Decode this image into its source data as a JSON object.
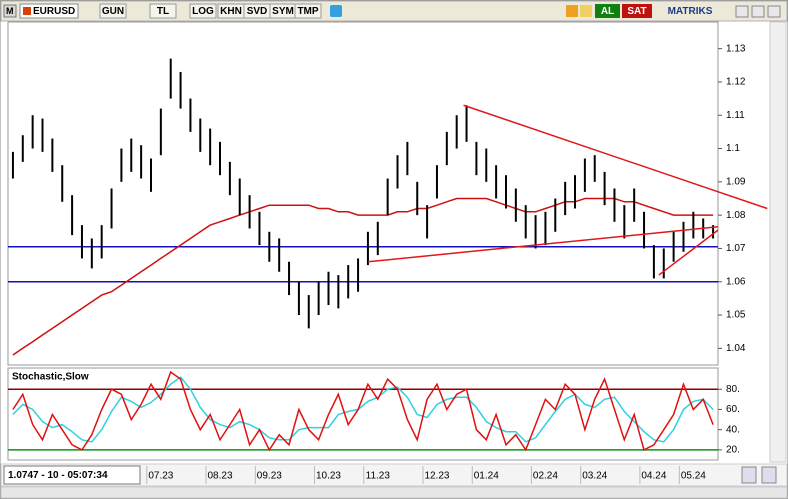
{
  "toolbar": {
    "symbol": "EURUSD",
    "buttons": [
      "GUN",
      "TL",
      "LOG",
      "KHN",
      "SVD",
      "SYM",
      "TMP"
    ],
    "buy": "AL",
    "sell": "SAT",
    "brand": "MATRIKS"
  },
  "status": "1.0747 - 10 - 05:07:34",
  "chart_data": [
    {
      "type": "ohlc",
      "color": "#000000",
      "categories": [
        null,
        null,
        null,
        null,
        null,
        null,
        null,
        null,
        null,
        null,
        null,
        null,
        null,
        null,
        null,
        "07.23",
        null,
        null,
        null,
        null,
        null,
        "08.23",
        null,
        null,
        null,
        null,
        "09.23",
        null,
        null,
        null,
        null,
        null,
        "10.23",
        null,
        null,
        null,
        null,
        "11.23",
        null,
        null,
        null,
        null,
        null,
        "12.23",
        null,
        null,
        null,
        null,
        "01.24",
        null,
        null,
        null,
        null,
        null,
        "02.24",
        null,
        null,
        null,
        null,
        "03.24",
        null,
        null,
        null,
        null,
        null,
        "04.24",
        null,
        null,
        null,
        "05.24",
        null,
        null
      ],
      "high": [
        1.099,
        1.104,
        1.11,
        1.109,
        1.103,
        1.095,
        1.086,
        1.077,
        1.073,
        1.077,
        1.088,
        1.1,
        1.103,
        1.101,
        1.097,
        1.112,
        1.127,
        1.123,
        1.115,
        1.109,
        1.106,
        1.102,
        1.096,
        1.091,
        1.086,
        1.081,
        1.075,
        1.073,
        1.066,
        1.06,
        1.056,
        1.06,
        1.063,
        1.062,
        1.065,
        1.067,
        1.075,
        1.078,
        1.091,
        1.098,
        1.102,
        1.09,
        1.083,
        1.095,
        1.105,
        1.11,
        1.113,
        1.102,
        1.1,
        1.095,
        1.092,
        1.088,
        1.083,
        1.08,
        1.081,
        1.085,
        1.09,
        1.092,
        1.097,
        1.098,
        1.093,
        1.088,
        1.083,
        1.088,
        1.081,
        1.071,
        1.07,
        1.075,
        1.078,
        1.081,
        1.079,
        1.077
      ],
      "low": [
        1.091,
        1.096,
        1.1,
        1.099,
        1.093,
        1.084,
        1.074,
        1.067,
        1.064,
        1.067,
        1.076,
        1.09,
        1.093,
        1.091,
        1.087,
        1.098,
        1.115,
        1.112,
        1.105,
        1.099,
        1.095,
        1.092,
        1.086,
        1.08,
        1.076,
        1.071,
        1.066,
        1.063,
        1.056,
        1.05,
        1.046,
        1.05,
        1.053,
        1.052,
        1.055,
        1.057,
        1.065,
        1.068,
        1.08,
        1.088,
        1.092,
        1.08,
        1.073,
        1.085,
        1.095,
        1.1,
        1.102,
        1.092,
        1.09,
        1.085,
        1.082,
        1.078,
        1.073,
        1.07,
        1.071,
        1.075,
        1.08,
        1.082,
        1.087,
        1.09,
        1.083,
        1.078,
        1.073,
        1.078,
        1.07,
        1.061,
        1.061,
        1.066,
        1.069,
        1.073,
        1.073,
        1.073
      ],
      "series": [
        {
          "color": "#d01010",
          "values": [
            1.038,
            1.04,
            1.042,
            1.044,
            1.046,
            1.048,
            1.05,
            1.052,
            1.054,
            1.056,
            1.057,
            1.059,
            1.061,
            1.063,
            1.065,
            1.067,
            1.069,
            1.071,
            1.073,
            1.075,
            1.077,
            1.078,
            1.079,
            1.08,
            1.081,
            1.082,
            1.083,
            1.083,
            1.083,
            1.083,
            1.083,
            1.082,
            1.082,
            1.081,
            1.081,
            1.08,
            1.08,
            1.08,
            1.08,
            1.081,
            1.081,
            1.082,
            1.082,
            1.083,
            1.084,
            1.085,
            1.085,
            1.085,
            1.085,
            1.084,
            1.083,
            1.082,
            1.081,
            1.081,
            1.082,
            1.083,
            1.084,
            1.084,
            1.085,
            1.085,
            1.085,
            1.085,
            1.084,
            1.084,
            1.083,
            1.082,
            1.081,
            1.08,
            1.08,
            1.08,
            1.08,
            1.08
          ]
        }
      ],
      "hlines": [
        {
          "value": 1.0705,
          "color": "#1010c0"
        },
        {
          "value": 1.06,
          "color": "#1010c0"
        }
      ],
      "trendlines": [
        {
          "color": "#e01818",
          "x": [
            45.7,
            76.5
          ],
          "y": [
            1.113,
            1.082
          ]
        },
        {
          "color": "#e01818",
          "x": [
            36,
            71.5
          ],
          "y": [
            1.066,
            1.0765
          ]
        },
        {
          "color": "#e01818",
          "x": [
            65.5,
            71.5
          ],
          "y": [
            1.062,
            1.0755
          ]
        }
      ],
      "ylim": [
        1.035,
        1.138
      ],
      "yticks": [
        1.04,
        1.05,
        1.06,
        1.07,
        1.08,
        1.09,
        1.1,
        1.11,
        1.12,
        1.13
      ]
    },
    {
      "type": "stochastic",
      "title": "Stochastic,Slow",
      "series": [
        {
          "color": "#e01010",
          "values": [
            60,
            75,
            45,
            30,
            55,
            40,
            25,
            20,
            35,
            60,
            80,
            75,
            50,
            65,
            85,
            70,
            97,
            90,
            60,
            40,
            55,
            30,
            45,
            60,
            25,
            40,
            20,
            35,
            25,
            60,
            40,
            30,
            55,
            75,
            45,
            60,
            85,
            70,
            90,
            80,
            50,
            30,
            70,
            85,
            60,
            75,
            80,
            40,
            30,
            55,
            25,
            35,
            20,
            45,
            70,
            60,
            85,
            75,
            40,
            70,
            90,
            60,
            30,
            55,
            20,
            25,
            40,
            55,
            85,
            60,
            70,
            45
          ]
        },
        {
          "color": "#30d0e0",
          "values": [
            55,
            65,
            60,
            48,
            42,
            45,
            38,
            30,
            28,
            40,
            58,
            72,
            68,
            62,
            67,
            75,
            85,
            92,
            80,
            62,
            50,
            45,
            42,
            48,
            45,
            40,
            32,
            30,
            30,
            40,
            42,
            42,
            42,
            55,
            58,
            60,
            68,
            72,
            80,
            82,
            72,
            55,
            52,
            65,
            70,
            72,
            72,
            62,
            48,
            42,
            38,
            38,
            28,
            32,
            45,
            58,
            70,
            75,
            65,
            62,
            70,
            72,
            58,
            48,
            38,
            30,
            28,
            40,
            60,
            68,
            70,
            60
          ]
        }
      ],
      "levels": [
        {
          "value": 80,
          "color": "#900000"
        },
        {
          "value": 20,
          "color": "#109010"
        }
      ],
      "ylim": [
        10,
        101
      ],
      "yticks": [
        {
          "value": 20,
          "label": "20."
        },
        {
          "value": 40,
          "label": "40."
        },
        {
          "value": 60,
          "label": "60."
        },
        {
          "value": 80,
          "label": "80."
        }
      ]
    }
  ]
}
